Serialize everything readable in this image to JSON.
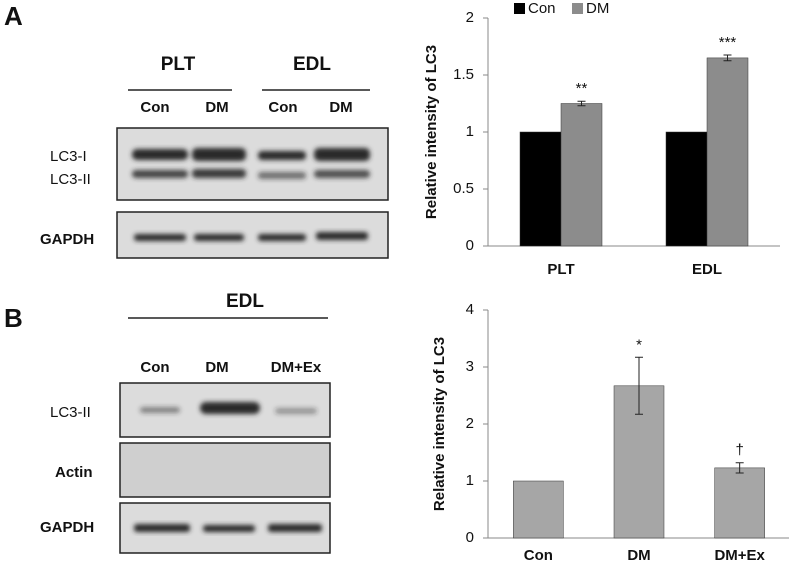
{
  "panels": [
    {
      "label": "A",
      "groups": [
        "PLT",
        "EDL"
      ],
      "lanes": [
        "Con",
        "DM",
        "Con",
        "DM"
      ],
      "rows": [
        "LC3-I",
        "LC3-II",
        "GAPDH"
      ]
    },
    {
      "label": "B",
      "groups": [
        "EDL"
      ],
      "lanes": [
        "Con",
        "DM",
        "DM+Ex"
      ],
      "rows": [
        "LC3-II",
        "Actin",
        "GAPDH"
      ]
    }
  ],
  "chart_data": [
    {
      "type": "bar",
      "ylabel": "Relative intensity of LC3",
      "categories": [
        "PLT",
        "EDL"
      ],
      "series": [
        {
          "name": "Con",
          "color": "#000000",
          "values": [
            1,
            1
          ]
        },
        {
          "name": "DM",
          "color": "#8c8c8c",
          "values": [
            1.25,
            1.65
          ],
          "errors": [
            0.02,
            0.025
          ],
          "annotations": [
            "**",
            "***"
          ]
        }
      ],
      "ylim": [
        0,
        2
      ],
      "yticks": [
        0,
        0.5,
        1,
        1.5,
        2
      ],
      "legend": "top"
    },
    {
      "type": "bar",
      "ylabel": "Relative intensity of LC3",
      "categories": [
        "Con",
        "DM",
        "DM+Ex"
      ],
      "values": [
        1,
        2.67,
        1.23
      ],
      "errors": [
        null,
        0.5,
        0.09
      ],
      "annotations": [
        null,
        "*",
        "†"
      ],
      "color": "#a6a6a6",
      "ylim": [
        0,
        4
      ],
      "yticks": [
        0,
        1,
        2,
        3,
        4
      ]
    }
  ]
}
